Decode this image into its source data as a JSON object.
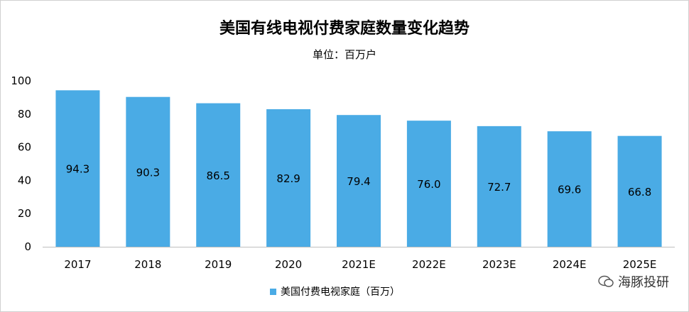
{
  "chart_data": {
    "type": "bar",
    "title": "美国有线电视付费家庭数量变化趋势",
    "subtitle": "单位：百万户",
    "categories": [
      "2017",
      "2018",
      "2019",
      "2020",
      "2021E",
      "2022E",
      "2023E",
      "2024E",
      "2025E"
    ],
    "series": [
      {
        "name": "美国付费电视家庭（百万）",
        "values": [
          94.3,
          90.3,
          86.5,
          82.9,
          79.4,
          76.0,
          72.7,
          69.6,
          66.8
        ],
        "labels": [
          "94.3",
          "90.3",
          "86.5",
          "82.9",
          "79.4",
          "76.0",
          "72.7",
          "69.6",
          "66.8"
        ]
      }
    ],
    "ylim": [
      0,
      100
    ],
    "yticks": [
      "0",
      "20",
      "40",
      "60",
      "80",
      "100"
    ],
    "xlabel": "",
    "ylabel": "",
    "legend_position": "bottom",
    "bar_color": "#4aabe5"
  },
  "watermark": {
    "text": "海豚投研",
    "icon": "wechat-bubble-icon"
  }
}
